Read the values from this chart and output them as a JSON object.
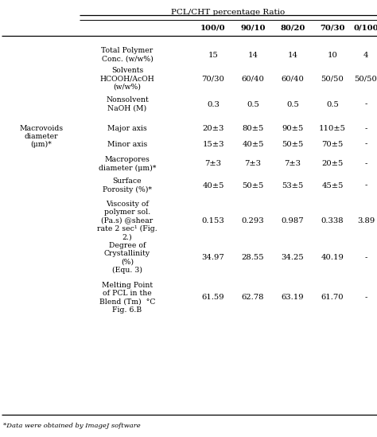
{
  "header_group": "PCL/CHT percentage Ratio",
  "col_headers": [
    "100/0",
    "90/10",
    "80/20",
    "70/30",
    "0/100"
  ],
  "row_labels": [
    "Total Polymer\nConc. (w/w%)",
    "Solvents\nHCOOH/AcOH\n(w/w%)",
    "Nonsolvent\nNaOH (M)",
    "Major axis",
    "Minor axis",
    "Macropores\ndiameter (μm)*",
    "Surface\nPorosity (%)*",
    "Viscosity of\npolymer sol.\n(Pa.s) @shear\nrate 2 sec¹ (Fig.\n2.)",
    "Degree of\nCrystallinity\n(%)\n(Equ. 3)",
    "Melting Point\nof PCL in the\nBlend (Tm)  °C\nFig. 6.B"
  ],
  "data": [
    [
      "15",
      "14",
      "14",
      "10",
      "4"
    ],
    [
      "70/30",
      "60/40",
      "60/40",
      "50/50",
      "50/50"
    ],
    [
      "0.3",
      "0.5",
      "0.5",
      "0.5",
      "-"
    ],
    [
      "20±3",
      "80±5",
      "90±5",
      "110±5",
      "-"
    ],
    [
      "15±3",
      "40±5",
      "50±5",
      "70±5",
      "-"
    ],
    [
      "7±3",
      "7±3",
      "7±3",
      "20±5",
      "-"
    ],
    [
      "40±5",
      "50±5",
      "53±5",
      "45±5",
      "-"
    ],
    [
      "0.153",
      "0.293",
      "0.987",
      "0.338",
      "3.89"
    ],
    [
      "34.97",
      "28.55",
      "34.25",
      "40.19",
      "-"
    ],
    [
      "61.59",
      "62.78",
      "63.19",
      "61.70",
      "-"
    ]
  ],
  "footnote": "*Data were obtained by ImageJ software",
  "macrovoids_label": "Macrovoids\ndiameter\n(μm)*",
  "macrovoids_rows": [
    3,
    4
  ],
  "bg_color": "#ffffff",
  "text_color": "#000000",
  "line_color": "#000000",
  "fontsize": 7.2,
  "header_fontsize": 7.5,
  "viscosity_label": "Viscosity of\npolymer sol.\n(Pa.s) @shear\nrate 2 sec¹ (Fig.\n2.)"
}
